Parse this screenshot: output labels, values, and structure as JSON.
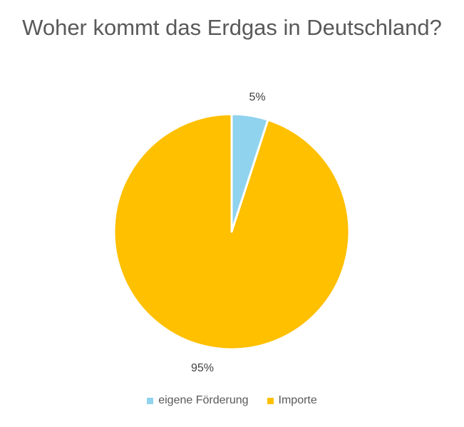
{
  "chart_data": {
    "type": "pie",
    "title": "Woher kommt das Erdgas in Deutschland?",
    "categories": [
      "eigene Förderung",
      "Importe"
    ],
    "values": [
      5,
      95
    ],
    "data_labels": [
      "5%",
      "95%"
    ],
    "colors": [
      "#8FD3EE",
      "#FFC000"
    ],
    "legend_position": "bottom"
  }
}
